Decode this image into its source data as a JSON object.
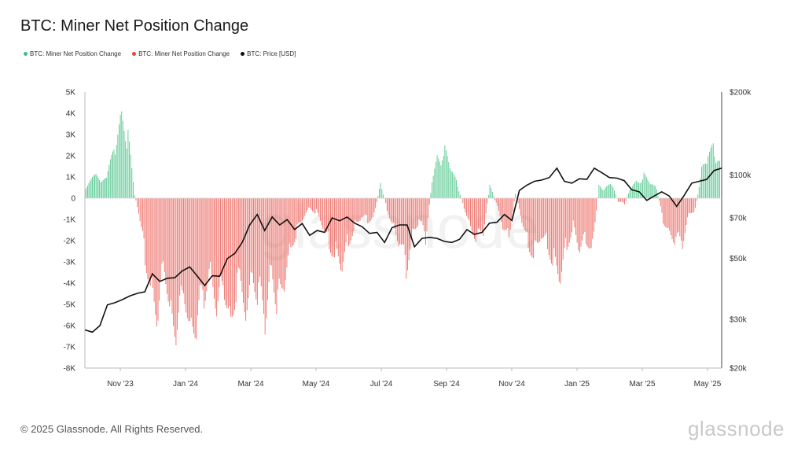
{
  "title": "BTC: Miner Net Position Change",
  "legend": [
    {
      "label": "BTC: Miner Net Position Change",
      "color": "#3dbf7f"
    },
    {
      "label": "BTC: Miner Net Position Change",
      "color": "#e8453c"
    },
    {
      "label": "BTC: Price [USD]",
      "color": "#111111"
    }
  ],
  "watermark": "glassnode",
  "footer": "© 2025 Glassnode. All Rights Reserved.",
  "brand": "glassnode",
  "chart_data": {
    "type": "bar",
    "title": "BTC: Miner Net Position Change",
    "x_ticks": [
      "Nov '23",
      "Jan '24",
      "Mar '24",
      "May '24",
      "Jul '24",
      "Sep '24",
      "Nov '24",
      "Jan '25",
      "Mar '25",
      "May '25"
    ],
    "x_range": [
      "2023-10-03",
      "2025-05-20"
    ],
    "y_left": {
      "ticks": [
        "5K",
        "4K",
        "3K",
        "2K",
        "1K",
        "0",
        "-1K",
        "-2K",
        "-3K",
        "-4K",
        "-5K",
        "-6K",
        "-7K",
        "-8K"
      ],
      "ylim": [
        -8000,
        5000
      ]
    },
    "y_right": {
      "ticks": [
        "$200k",
        "$100k",
        "$70k",
        "$50k",
        "$30k",
        "$20k"
      ],
      "tick_values": [
        200000,
        100000,
        70000,
        50000,
        30000,
        20000
      ],
      "ylim": [
        20000,
        200000
      ],
      "scale": "log"
    },
    "series": [
      {
        "name": "BTC: Miner Net Position Change",
        "kind": "bar",
        "color_positive": "#3dbf7f",
        "color_negative": "#e8453c",
        "points": [
          [
            "2023-10-03",
            600
          ],
          [
            "2023-10-13",
            1200
          ],
          [
            "2023-10-23",
            1000
          ],
          [
            "2023-10-31",
            3000
          ],
          [
            "2023-11-06",
            4400
          ],
          [
            "2023-11-12",
            3300
          ],
          [
            "2023-11-18",
            200
          ],
          [
            "2023-11-22",
            -800
          ],
          [
            "2023-11-28",
            -3200
          ],
          [
            "2023-12-04",
            -4800
          ],
          [
            "2023-12-10",
            -6500
          ],
          [
            "2023-12-16",
            -3500
          ],
          [
            "2023-12-22",
            -6200
          ],
          [
            "2023-12-28",
            -7200
          ],
          [
            "2024-01-04",
            -5000
          ],
          [
            "2024-01-10",
            -7000
          ],
          [
            "2024-01-16",
            -6600
          ],
          [
            "2024-01-22",
            -5200
          ],
          [
            "2024-01-28",
            -3600
          ],
          [
            "2024-02-04",
            -6000
          ],
          [
            "2024-02-10",
            -4800
          ],
          [
            "2024-02-16",
            -6500
          ],
          [
            "2024-02-22",
            -4500
          ],
          [
            "2024-03-01",
            -5800
          ],
          [
            "2024-03-07",
            -4000
          ],
          [
            "2024-03-13",
            -5300
          ],
          [
            "2024-03-19",
            -6500
          ],
          [
            "2024-03-25",
            -3500
          ],
          [
            "2024-03-31",
            -6000
          ],
          [
            "2024-04-06",
            -4500
          ],
          [
            "2024-04-12",
            -2500
          ],
          [
            "2024-04-18",
            -1800
          ],
          [
            "2024-04-24",
            -1000
          ],
          [
            "2024-04-30",
            -500
          ],
          [
            "2024-05-06",
            -800
          ],
          [
            "2024-05-12",
            -1500
          ],
          [
            "2024-05-18",
            -2500
          ],
          [
            "2024-05-24",
            -3000
          ],
          [
            "2024-05-30",
            -3700
          ],
          [
            "2024-06-05",
            -2300
          ],
          [
            "2024-06-11",
            -1500
          ],
          [
            "2024-06-17",
            -1000
          ],
          [
            "2024-06-23",
            -1200
          ],
          [
            "2024-06-29",
            -900
          ],
          [
            "2024-07-05",
            800
          ],
          [
            "2024-07-11",
            -600
          ],
          [
            "2024-07-17",
            -1500
          ],
          [
            "2024-07-23",
            -2500
          ],
          [
            "2024-07-29",
            -3800
          ],
          [
            "2024-08-04",
            -1800
          ],
          [
            "2024-08-10",
            -1200
          ],
          [
            "2024-08-16",
            -2200
          ],
          [
            "2024-08-22",
            900
          ],
          [
            "2024-08-28",
            2300
          ],
          [
            "2024-09-03",
            2500
          ],
          [
            "2024-09-09",
            1500
          ],
          [
            "2024-09-15",
            700
          ],
          [
            "2024-09-21",
            -500
          ],
          [
            "2024-09-27",
            -1500
          ],
          [
            "2024-10-03",
            -2200
          ],
          [
            "2024-10-09",
            -1800
          ],
          [
            "2024-10-15",
            700
          ],
          [
            "2024-10-21",
            -300
          ],
          [
            "2024-10-27",
            -1500
          ],
          [
            "2024-11-02",
            -2000
          ],
          [
            "2024-11-08",
            300
          ],
          [
            "2024-11-14",
            -1200
          ],
          [
            "2024-11-20",
            -2500
          ],
          [
            "2024-11-26",
            -3000
          ],
          [
            "2024-12-02",
            -2000
          ],
          [
            "2024-12-08",
            -2500
          ],
          [
            "2024-12-14",
            -3500
          ],
          [
            "2024-12-20",
            -4300
          ],
          [
            "2024-12-26",
            -2500
          ],
          [
            "2025-01-01",
            -1500
          ],
          [
            "2025-01-07",
            -2800
          ],
          [
            "2025-01-13",
            -2200
          ],
          [
            "2025-01-19",
            -2600
          ],
          [
            "2025-01-25",
            700
          ],
          [
            "2025-01-31",
            500
          ],
          [
            "2025-02-06",
            800
          ],
          [
            "2025-02-12",
            -200
          ],
          [
            "2025-02-18",
            -300
          ],
          [
            "2025-02-24",
            600
          ],
          [
            "2025-03-02",
            900
          ],
          [
            "2025-03-08",
            1200
          ],
          [
            "2025-03-14",
            800
          ],
          [
            "2025-03-20",
            500
          ],
          [
            "2025-03-26",
            -1200
          ],
          [
            "2025-04-01",
            -1800
          ],
          [
            "2025-04-07",
            -2300
          ],
          [
            "2025-04-13",
            -2400
          ],
          [
            "2025-04-19",
            -800
          ],
          [
            "2025-04-25",
            -600
          ],
          [
            "2025-05-01",
            1500
          ],
          [
            "2025-05-07",
            2200
          ],
          [
            "2025-05-13",
            2700
          ],
          [
            "2025-05-19",
            1800
          ]
        ]
      },
      {
        "name": "BTC: Price [USD]",
        "kind": "line",
        "axis": "right",
        "color": "#111111",
        "points": [
          [
            "2023-10-03",
            27500
          ],
          [
            "2023-10-10",
            27000
          ],
          [
            "2023-10-17",
            28500
          ],
          [
            "2023-10-24",
            33900
          ],
          [
            "2023-10-31",
            34500
          ],
          [
            "2023-11-07",
            35400
          ],
          [
            "2023-11-14",
            36500
          ],
          [
            "2023-11-21",
            37300
          ],
          [
            "2023-11-28",
            37800
          ],
          [
            "2023-12-05",
            43900
          ],
          [
            "2023-12-12",
            41200
          ],
          [
            "2023-12-19",
            42300
          ],
          [
            "2023-12-26",
            42500
          ],
          [
            "2024-01-02",
            45000
          ],
          [
            "2024-01-09",
            46500
          ],
          [
            "2024-01-16",
            43100
          ],
          [
            "2024-01-23",
            39800
          ],
          [
            "2024-01-30",
            43200
          ],
          [
            "2024-02-06",
            43000
          ],
          [
            "2024-02-13",
            49800
          ],
          [
            "2024-02-20",
            52000
          ],
          [
            "2024-02-27",
            57000
          ],
          [
            "2024-03-05",
            66000
          ],
          [
            "2024-03-12",
            72000
          ],
          [
            "2024-03-19",
            63000
          ],
          [
            "2024-03-26",
            70500
          ],
          [
            "2024-04-02",
            66000
          ],
          [
            "2024-04-09",
            69000
          ],
          [
            "2024-04-16",
            63500
          ],
          [
            "2024-04-23",
            66800
          ],
          [
            "2024-04-30",
            60500
          ],
          [
            "2024-05-07",
            63000
          ],
          [
            "2024-05-14",
            62000
          ],
          [
            "2024-05-21",
            70000
          ],
          [
            "2024-05-28",
            68300
          ],
          [
            "2024-06-04",
            70500
          ],
          [
            "2024-06-11",
            67000
          ],
          [
            "2024-06-18",
            65000
          ],
          [
            "2024-06-25",
            61500
          ],
          [
            "2024-07-02",
            62000
          ],
          [
            "2024-07-09",
            57000
          ],
          [
            "2024-07-16",
            64500
          ],
          [
            "2024-07-23",
            66000
          ],
          [
            "2024-07-30",
            66000
          ],
          [
            "2024-08-06",
            55000
          ],
          [
            "2024-08-13",
            59000
          ],
          [
            "2024-08-20",
            59500
          ],
          [
            "2024-08-27",
            59000
          ],
          [
            "2024-09-03",
            57500
          ],
          [
            "2024-09-10",
            57000
          ],
          [
            "2024-09-17",
            58500
          ],
          [
            "2024-09-24",
            63500
          ],
          [
            "2024-10-01",
            61000
          ],
          [
            "2024-10-08",
            62000
          ],
          [
            "2024-10-15",
            67000
          ],
          [
            "2024-10-22",
            67500
          ],
          [
            "2024-10-29",
            72000
          ],
          [
            "2024-11-05",
            68500
          ],
          [
            "2024-11-12",
            88000
          ],
          [
            "2024-11-19",
            92000
          ],
          [
            "2024-11-26",
            95000
          ],
          [
            "2024-12-03",
            96000
          ],
          [
            "2024-12-10",
            98000
          ],
          [
            "2024-12-17",
            106000
          ],
          [
            "2024-12-24",
            95000
          ],
          [
            "2024-12-31",
            93500
          ],
          [
            "2025-01-07",
            97000
          ],
          [
            "2025-01-14",
            96500
          ],
          [
            "2025-01-21",
            106000
          ],
          [
            "2025-01-28",
            102000
          ],
          [
            "2025-02-04",
            98000
          ],
          [
            "2025-02-11",
            97500
          ],
          [
            "2025-02-18",
            95500
          ],
          [
            "2025-02-25",
            88500
          ],
          [
            "2025-03-04",
            87000
          ],
          [
            "2025-03-11",
            81000
          ],
          [
            "2025-03-18",
            84000
          ],
          [
            "2025-03-25",
            87000
          ],
          [
            "2025-04-01",
            84000
          ],
          [
            "2025-04-08",
            77000
          ],
          [
            "2025-04-15",
            84500
          ],
          [
            "2025-04-22",
            93500
          ],
          [
            "2025-04-29",
            95000
          ],
          [
            "2025-05-06",
            96500
          ],
          [
            "2025-05-13",
            104000
          ],
          [
            "2025-05-20",
            106000
          ]
        ]
      }
    ],
    "grid": false,
    "legend_position": "top-left"
  }
}
